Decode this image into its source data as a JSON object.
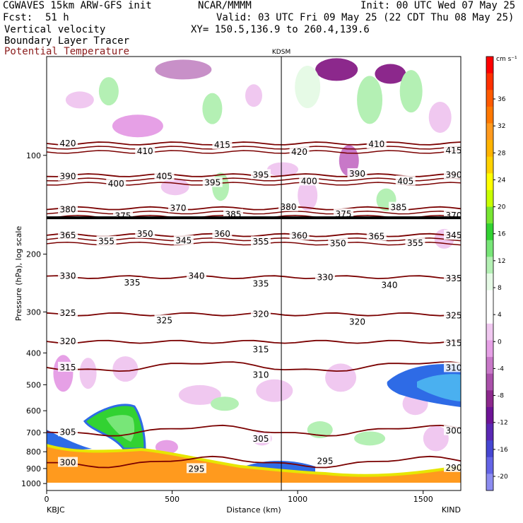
{
  "header": {
    "model_line": "CGWAVES 15km ARW-GFS init",
    "producer": "NCAR/MMMM",
    "init": "Init: 00 UTC Wed 07 May 25",
    "fcst_label": "Fcst:",
    "fcst_value": "51 h",
    "valid": "Valid: 03 UTC Fri 09 May 25 (22 CDT Thu 08 May 25)",
    "field1": "Vertical velocity",
    "xy": "XY= 150.5,136.9 to 260.4,139.6",
    "field2": "Boundary Layer Tracer",
    "field3": "Potential Temperature"
  },
  "colors": {
    "theta_contour": "#7a0000",
    "header_field3": "#8b1a1a",
    "terrain": "#ff9a1e"
  },
  "chart_data": {
    "type": "cross-section",
    "station_marker": "KDSM",
    "start_station": "KBJC",
    "end_station": "KIND",
    "xlabel": "Distance (km)",
    "ylabel": "Pressure (hPa), log scale",
    "xlim": [
      0,
      1650
    ],
    "ylim": [
      1050,
      50
    ],
    "y_scale": "log",
    "marker_x_km": 935,
    "x_ticks": [
      "0",
      "500",
      "1000",
      "1500"
    ],
    "y_ticks": [
      "100",
      "200",
      "300",
      "400",
      "500",
      "600",
      "700",
      "800",
      "900",
      "1000"
    ],
    "tropopause_hpa": 155,
    "colorbar": {
      "unit": "cm s⁻¹",
      "labels": [
        "36",
        "32",
        "28",
        "24",
        "20",
        "16",
        "12",
        "8",
        "4",
        "0",
        "-4",
        "-8",
        "-12",
        "-16",
        "-20"
      ],
      "colors": [
        "#ff0000",
        "#ff3000",
        "#ff5a00",
        "#ff7800",
        "#ff9a1e",
        "#ffb400",
        "#ffd200",
        "#ffff00",
        "#c8ff00",
        "#78e632",
        "#32d232",
        "#78e678",
        "#b4f0b4",
        "#e6fae6",
        "#ffffff",
        "#ffffff",
        "#f0c8f0",
        "#e6a0e6",
        "#c878c8",
        "#aa50aa",
        "#8c288c",
        "#6e1496",
        "#5a28b4",
        "#4646d2",
        "#6464e6",
        "#8c8cf0"
      ]
    },
    "theta_contours": [
      {
        "theta": 415,
        "p": 92,
        "labels": [
          420,
          410,
          415,
          420,
          410,
          415
        ]
      },
      {
        "theta": 400,
        "p": 115,
        "labels": [
          390,
          400,
          405,
          395,
          395,
          400,
          390,
          405,
          390
        ]
      },
      {
        "theta": 375,
        "p": 145,
        "labels": [
          380,
          375,
          370,
          385,
          380,
          375,
          385,
          370
        ]
      },
      {
        "theta": 360,
        "p": 175,
        "labels": [
          365,
          355,
          350,
          345,
          360,
          355,
          360,
          350,
          365,
          355,
          345
        ]
      },
      {
        "theta": 335,
        "p": 235,
        "labels": [
          330,
          335,
          340,
          335,
          330,
          340,
          335
        ]
      },
      {
        "theta": 325,
        "p": 305,
        "labels": [
          325,
          325,
          320,
          320,
          325
        ]
      },
      {
        "theta": 320,
        "p": 370,
        "labels": [
          320,
          315,
          315
        ]
      },
      {
        "theta": 315,
        "p": 440,
        "labels": [
          315,
          310,
          310
        ]
      },
      {
        "theta": 305,
        "p": 690,
        "labels": [
          305,
          305,
          300
        ]
      },
      {
        "theta": 295,
        "p": 860,
        "labels": [
          300,
          295,
          295,
          290
        ]
      }
    ]
  }
}
